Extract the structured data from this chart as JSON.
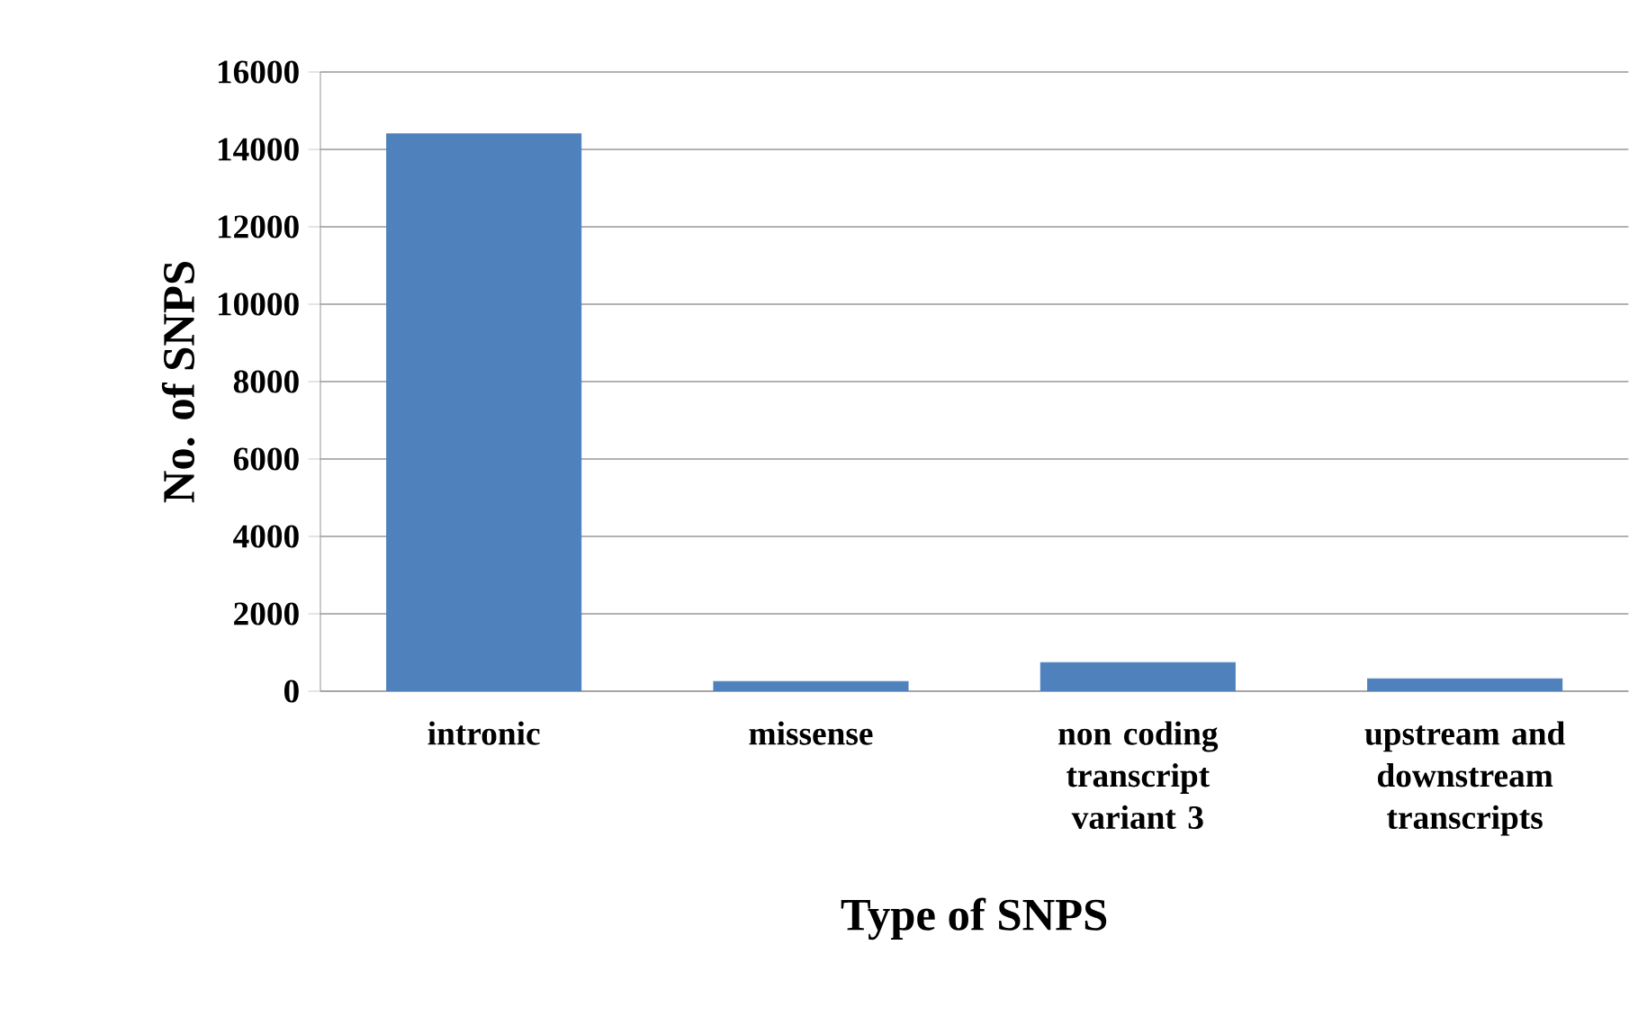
{
  "chart_data": {
    "type": "bar",
    "xlabel": "Type of SNPS",
    "ylabel": "No. of SNPS",
    "categories": [
      "intronic",
      "missense",
      "non coding transcript variant 3",
      "upstream and downstream transcripts"
    ],
    "values": [
      14400,
      250,
      740,
      320
    ],
    "color": "#4f81bd",
    "ylim": [
      0,
      16000
    ],
    "yticks": [
      0,
      2000,
      4000,
      6000,
      8000,
      10000,
      12000,
      14000,
      16000
    ],
    "grid": "y"
  }
}
